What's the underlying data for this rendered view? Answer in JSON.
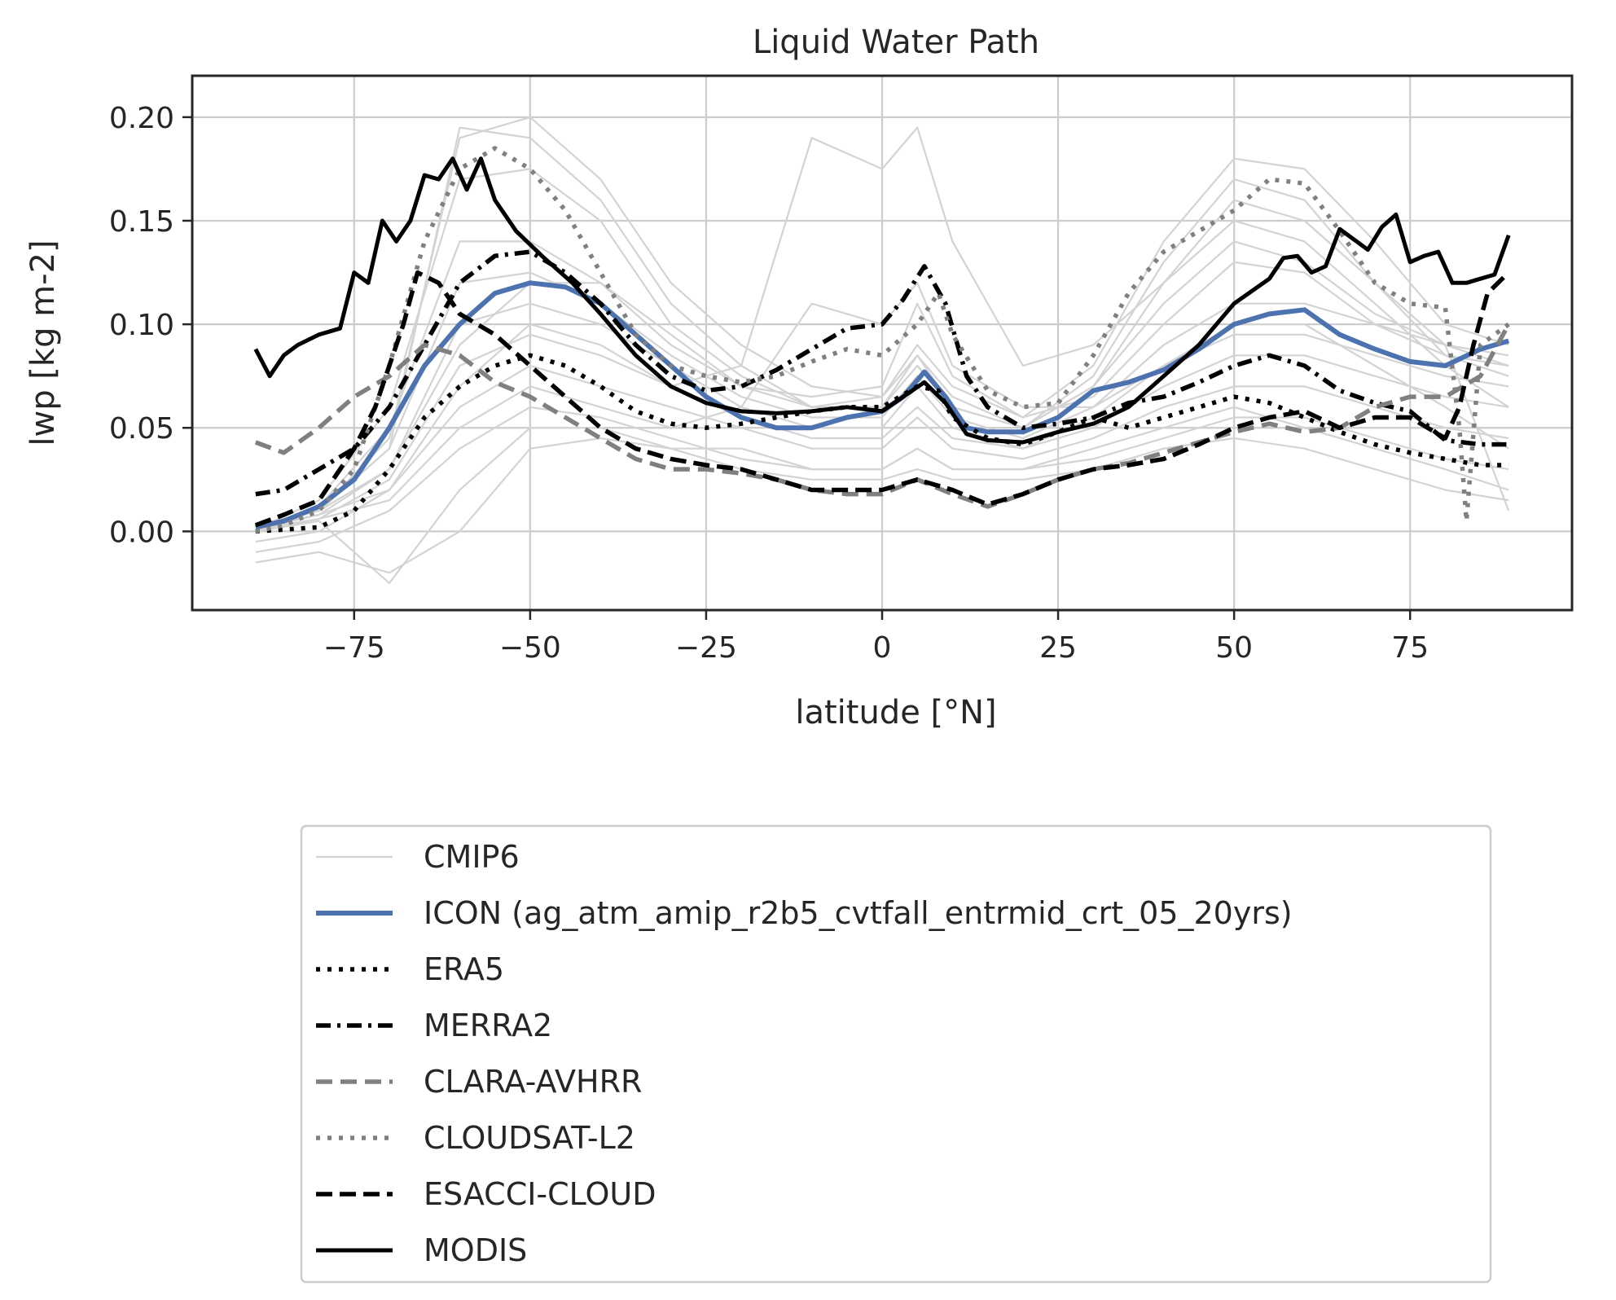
{
  "chart_data": {
    "type": "line",
    "title": "Liquid Water Path",
    "xlabel": "latitude [°N]",
    "ylabel": "lwp [kg m-2]",
    "xlim": [
      -98,
      98
    ],
    "ylim": [
      -0.038,
      0.22
    ],
    "x_ticks": [
      -75,
      -50,
      -25,
      0,
      25,
      50,
      75
    ],
    "x_tick_labels": [
      "−75",
      "−50",
      "−25",
      "0",
      "25",
      "50",
      "75"
    ],
    "y_ticks": [
      0.0,
      0.05,
      0.1,
      0.15,
      0.2
    ],
    "y_tick_labels": [
      "0.00",
      "0.05",
      "0.10",
      "0.15",
      "0.20"
    ],
    "grid": true,
    "legend_position": "below-center",
    "series": [
      {
        "name": "CMIP6",
        "style": "thin",
        "color": "#d3d3d3",
        "x": [
          -89,
          -80,
          -70,
          -60,
          -50,
          -40,
          -30,
          -20,
          -10,
          0,
          5,
          10,
          20,
          30,
          40,
          50,
          60,
          70,
          80,
          89
        ],
        "members": [
          [
            0.003,
            0.01,
            0.045,
            0.19,
            0.2,
            0.17,
            0.12,
            0.09,
            0.07,
            0.065,
            0.09,
            0.07,
            0.055,
            0.08,
            0.14,
            0.18,
            0.175,
            0.14,
            0.1,
            0.09
          ],
          [
            0.002,
            0.01,
            0.04,
            0.195,
            0.19,
            0.16,
            0.11,
            0.08,
            0.06,
            0.06,
            0.085,
            0.065,
            0.05,
            0.075,
            0.13,
            0.17,
            0.16,
            0.12,
            0.09,
            0.08
          ],
          [
            0.001,
            0.015,
            0.06,
            0.17,
            0.175,
            0.15,
            0.1,
            0.075,
            0.06,
            0.06,
            0.08,
            0.06,
            0.05,
            0.07,
            0.12,
            0.16,
            0.15,
            0.12,
            0.085,
            0.075
          ],
          [
            0.0,
            0.012,
            0.05,
            0.14,
            0.14,
            0.12,
            0.09,
            0.07,
            0.06,
            0.065,
            0.085,
            0.06,
            0.05,
            0.07,
            0.11,
            0.14,
            0.13,
            0.105,
            0.09,
            0.085
          ],
          [
            0.002,
            0.01,
            0.04,
            0.12,
            0.125,
            0.11,
            0.085,
            0.065,
            0.055,
            0.055,
            0.075,
            0.055,
            0.045,
            0.06,
            0.09,
            0.11,
            0.11,
            0.1,
            0.085,
            0.08
          ],
          [
            0.001,
            0.008,
            0.03,
            0.1,
            0.11,
            0.1,
            0.08,
            0.06,
            0.05,
            0.05,
            0.07,
            0.05,
            0.04,
            0.055,
            0.08,
            0.095,
            0.095,
            0.085,
            0.075,
            0.07
          ],
          [
            0.0,
            0.006,
            0.025,
            0.08,
            0.095,
            0.085,
            0.07,
            0.055,
            0.045,
            0.045,
            0.06,
            0.045,
            0.04,
            0.05,
            0.07,
            0.085,
            0.085,
            0.075,
            0.065,
            0.06
          ],
          [
            -0.005,
            0.0,
            0.02,
            0.06,
            0.08,
            0.07,
            0.06,
            0.05,
            0.04,
            0.04,
            0.055,
            0.04,
            0.035,
            0.045,
            0.06,
            0.07,
            0.07,
            0.06,
            0.05,
            0.045
          ],
          [
            -0.01,
            -0.005,
            0.01,
            0.04,
            0.06,
            0.055,
            0.045,
            0.035,
            0.03,
            0.03,
            0.04,
            0.03,
            0.03,
            0.035,
            0.045,
            0.055,
            0.055,
            0.045,
            0.035,
            0.03
          ],
          [
            -0.015,
            -0.01,
            -0.02,
            0.0,
            0.04,
            0.045,
            0.04,
            0.03,
            0.025,
            0.025,
            0.03,
            0.025,
            0.025,
            0.03,
            0.04,
            0.045,
            0.04,
            0.03,
            0.02,
            0.015
          ],
          [
            0.0,
            0.005,
            -0.025,
            0.02,
            0.05,
            0.05,
            0.04,
            0.04,
            0.03,
            0.03,
            0.04,
            0.03,
            0.03,
            0.04,
            0.05,
            0.06,
            0.05,
            0.04,
            0.03,
            0.02
          ],
          [
            0.002,
            0.008,
            0.02,
            0.07,
            0.1,
            0.09,
            0.07,
            0.08,
            0.19,
            0.175,
            0.195,
            0.14,
            0.08,
            0.09,
            0.12,
            0.15,
            0.14,
            0.11,
            0.08,
            0.06
          ],
          [
            0.001,
            0.006,
            0.015,
            0.05,
            0.07,
            0.06,
            0.05,
            0.06,
            0.11,
            0.1,
            0.12,
            0.08,
            0.06,
            0.06,
            0.08,
            0.1,
            0.1,
            0.08,
            0.06,
            0.04
          ],
          [
            0.003,
            0.01,
            0.03,
            0.09,
            0.12,
            0.12,
            0.095,
            0.07,
            0.065,
            0.07,
            0.11,
            0.075,
            0.055,
            0.065,
            0.1,
            0.13,
            0.125,
            0.1,
            0.09,
            0.01
          ]
        ]
      },
      {
        "name": "ICON (ag_atm_amip_r2b5_cvtfall_entrmid_crt_05_20yrs)",
        "style": "solid-thick",
        "color": "#4c72b0",
        "x": [
          -89,
          -85,
          -80,
          -75,
          -70,
          -65,
          -60,
          -55,
          -50,
          -45,
          -40,
          -35,
          -30,
          -25,
          -20,
          -15,
          -10,
          -5,
          0,
          3,
          6,
          9,
          12,
          15,
          20,
          25,
          30,
          35,
          40,
          45,
          50,
          55,
          60,
          65,
          70,
          75,
          80,
          85,
          89
        ],
        "y": [
          0.002,
          0.005,
          0.012,
          0.025,
          0.05,
          0.08,
          0.1,
          0.115,
          0.12,
          0.118,
          0.11,
          0.095,
          0.08,
          0.065,
          0.055,
          0.05,
          0.05,
          0.055,
          0.058,
          0.065,
          0.077,
          0.065,
          0.05,
          0.048,
          0.048,
          0.055,
          0.068,
          0.072,
          0.078,
          0.088,
          0.1,
          0.105,
          0.107,
          0.095,
          0.088,
          0.082,
          0.08,
          0.088,
          0.092
        ]
      },
      {
        "name": "ERA5",
        "style": "dotted",
        "color": "#000000",
        "x": [
          -89,
          -80,
          -75,
          -70,
          -65,
          -60,
          -55,
          -50,
          -45,
          -40,
          -35,
          -30,
          -25,
          -20,
          -15,
          -10,
          -5,
          0,
          5,
          8,
          10,
          15,
          20,
          25,
          30,
          35,
          40,
          45,
          50,
          55,
          60,
          65,
          70,
          75,
          80,
          85,
          89
        ],
        "y": [
          0.0,
          0.002,
          0.01,
          0.03,
          0.055,
          0.07,
          0.08,
          0.085,
          0.08,
          0.07,
          0.058,
          0.052,
          0.05,
          0.052,
          0.055,
          0.058,
          0.06,
          0.06,
          0.07,
          0.068,
          0.055,
          0.045,
          0.042,
          0.048,
          0.055,
          0.05,
          0.055,
          0.06,
          0.065,
          0.062,
          0.055,
          0.048,
          0.042,
          0.038,
          0.035,
          0.032,
          0.032
        ]
      },
      {
        "name": "MERRA2",
        "style": "dashdot",
        "color": "#000000",
        "x": [
          -89,
          -85,
          -80,
          -75,
          -70,
          -65,
          -60,
          -55,
          -50,
          -45,
          -40,
          -35,
          -30,
          -25,
          -20,
          -15,
          -10,
          -5,
          0,
          3,
          6,
          9,
          12,
          15,
          20,
          25,
          30,
          35,
          40,
          45,
          50,
          55,
          60,
          65,
          70,
          75,
          80,
          85,
          89
        ],
        "y": [
          0.018,
          0.02,
          0.03,
          0.04,
          0.06,
          0.09,
          0.12,
          0.133,
          0.135,
          0.125,
          0.11,
          0.09,
          0.075,
          0.068,
          0.07,
          0.078,
          0.088,
          0.098,
          0.1,
          0.112,
          0.128,
          0.11,
          0.075,
          0.06,
          0.05,
          0.052,
          0.055,
          0.062,
          0.065,
          0.072,
          0.08,
          0.085,
          0.08,
          0.068,
          0.062,
          0.058,
          0.044,
          0.042,
          0.042
        ]
      },
      {
        "name": "CLARA-AVHRR",
        "style": "dashed",
        "color": "#808080",
        "x": [
          -89,
          -85,
          -80,
          -75,
          -70,
          -65,
          -60,
          -55,
          -50,
          -45,
          -40,
          -35,
          -30,
          -25,
          -20,
          -15,
          -10,
          -5,
          0,
          5,
          10,
          15,
          20,
          25,
          30,
          35,
          40,
          45,
          50,
          55,
          60,
          65,
          70,
          75,
          80,
          85,
          89
        ],
        "y": [
          0.043,
          0.038,
          0.05,
          0.065,
          0.075,
          0.09,
          0.085,
          0.072,
          0.065,
          0.055,
          0.045,
          0.035,
          0.03,
          0.03,
          0.028,
          0.025,
          0.02,
          0.018,
          0.018,
          0.025,
          0.018,
          0.012,
          0.018,
          0.025,
          0.03,
          0.033,
          0.038,
          0.043,
          0.048,
          0.052,
          0.048,
          0.05,
          0.06,
          0.065,
          0.065,
          0.075,
          0.1
        ]
      },
      {
        "name": "CLOUDSAT-L2",
        "style": "dotted",
        "color": "#808080",
        "x": [
          -89,
          -85,
          -80,
          -75,
          -70,
          -65,
          -60,
          -55,
          -50,
          -45,
          -40,
          -35,
          -30,
          -25,
          -20,
          -15,
          -10,
          -5,
          0,
          5,
          8,
          10,
          15,
          20,
          25,
          30,
          35,
          40,
          45,
          50,
          55,
          60,
          65,
          70,
          75,
          80,
          82,
          83,
          85,
          89
        ],
        "y": [
          0.0,
          0.003,
          0.01,
          0.03,
          0.08,
          0.14,
          0.175,
          0.185,
          0.175,
          0.155,
          0.125,
          0.095,
          0.08,
          0.075,
          0.072,
          0.075,
          0.082,
          0.088,
          0.085,
          0.1,
          0.115,
          0.095,
          0.068,
          0.06,
          0.062,
          0.085,
          0.115,
          0.135,
          0.145,
          0.155,
          0.17,
          0.168,
          0.145,
          0.12,
          0.11,
          0.108,
          0.05,
          0.005,
          0.09,
          0.1
        ]
      },
      {
        "name": "ESACCI-CLOUD",
        "style": "dashed-thick",
        "color": "#000000",
        "x": [
          -89,
          -85,
          -80,
          -75,
          -72,
          -68,
          -66,
          -63,
          -60,
          -55,
          -50,
          -45,
          -40,
          -35,
          -30,
          -25,
          -20,
          -15,
          -10,
          -5,
          0,
          5,
          10,
          15,
          20,
          25,
          30,
          35,
          40,
          45,
          50,
          55,
          60,
          65,
          70,
          75,
          80,
          82,
          84,
          86,
          89
        ],
        "y": [
          0.003,
          0.008,
          0.015,
          0.04,
          0.06,
          0.1,
          0.125,
          0.12,
          0.105,
          0.095,
          0.08,
          0.065,
          0.05,
          0.04,
          0.035,
          0.032,
          0.03,
          0.025,
          0.02,
          0.02,
          0.02,
          0.025,
          0.02,
          0.013,
          0.018,
          0.025,
          0.03,
          0.032,
          0.035,
          0.042,
          0.05,
          0.055,
          0.058,
          0.05,
          0.055,
          0.055,
          0.045,
          0.06,
          0.09,
          0.115,
          0.125
        ]
      },
      {
        "name": "MODIS",
        "style": "solid",
        "color": "#000000",
        "x": [
          -89,
          -87,
          -85,
          -83,
          -80,
          -77,
          -75,
          -73,
          -71,
          -69,
          -67,
          -65,
          -63,
          -61,
          -59,
          -57,
          -55,
          -52,
          -48,
          -44,
          -40,
          -35,
          -30,
          -25,
          -20,
          -15,
          -10,
          -5,
          0,
          3,
          6,
          9,
          12,
          15,
          20,
          25,
          30,
          35,
          40,
          45,
          50,
          55,
          57,
          59,
          61,
          63,
          65,
          67,
          69,
          71,
          73,
          75,
          77,
          79,
          81,
          83,
          85,
          87,
          89
        ],
        "y": [
          0.088,
          0.075,
          0.085,
          0.09,
          0.095,
          0.098,
          0.125,
          0.12,
          0.15,
          0.14,
          0.15,
          0.172,
          0.17,
          0.18,
          0.165,
          0.18,
          0.16,
          0.145,
          0.132,
          0.12,
          0.105,
          0.085,
          0.07,
          0.062,
          0.058,
          0.057,
          0.058,
          0.06,
          0.058,
          0.065,
          0.072,
          0.062,
          0.047,
          0.044,
          0.043,
          0.048,
          0.052,
          0.06,
          0.075,
          0.09,
          0.11,
          0.122,
          0.132,
          0.133,
          0.125,
          0.128,
          0.146,
          0.141,
          0.136,
          0.147,
          0.153,
          0.13,
          0.133,
          0.135,
          0.12,
          0.12,
          0.122,
          0.124,
          0.143
        ]
      }
    ]
  }
}
